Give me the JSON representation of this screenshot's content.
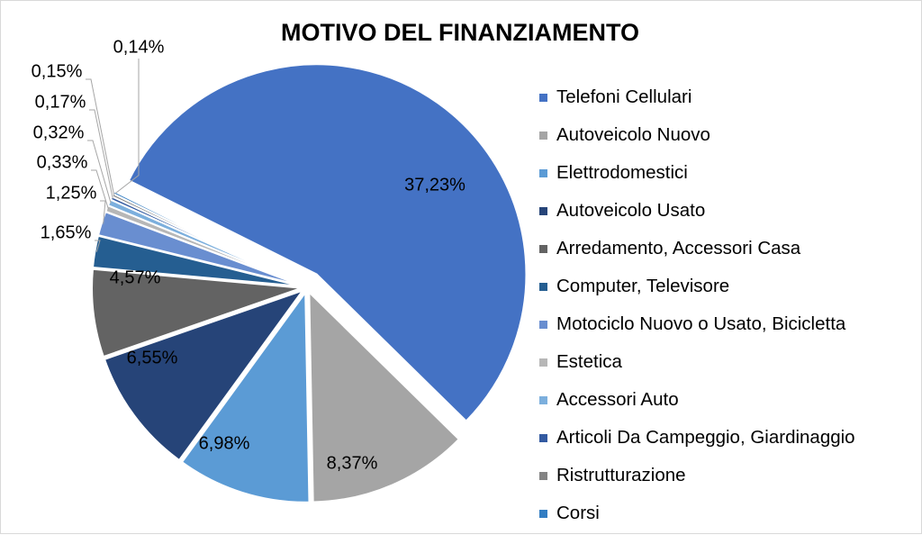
{
  "chart_data": {
    "type": "pie",
    "title": "MOTIVO DEL FINANZIAMENTO",
    "legend_position": "right",
    "slices": [
      {
        "label": "Telefoni Cellulari",
        "value": 37.23,
        "value_label": "37,23%",
        "color": "#4472c4"
      },
      {
        "label": "Autoveicolo Nuovo",
        "value": 8.37,
        "value_label": "8,37%",
        "color": "#a5a5a5"
      },
      {
        "label": "Elettrodomestici",
        "value": 6.98,
        "value_label": "6,98%",
        "color": "#5b9bd5"
      },
      {
        "label": "Autoveicolo Usato",
        "value": 6.55,
        "value_label": "6,55%",
        "color": "#264478"
      },
      {
        "label": "Arredamento, Accessori Casa",
        "value": 4.57,
        "value_label": "4,57%",
        "color": "#636363"
      },
      {
        "label": "Computer, Televisore",
        "value": 1.65,
        "value_label": "1,65%",
        "color": "#255e91"
      },
      {
        "label": "Motociclo Nuovo o Usato, Bicicletta",
        "value": 1.25,
        "value_label": "1,25%",
        "color": "#698ed0"
      },
      {
        "label": "Estetica",
        "value": 0.33,
        "value_label": "0,33%",
        "color": "#b7b7b7"
      },
      {
        "label": "Accessori Auto",
        "value": 0.32,
        "value_label": "0,32%",
        "color": "#7cafdd"
      },
      {
        "label": "Articoli Da Campeggio, Giardinaggio",
        "value": 0.17,
        "value_label": "0,17%",
        "color": "#335aa1"
      },
      {
        "label": "Ristrutturazione",
        "value": 0.15,
        "value_label": "0,15%",
        "color": "#848484"
      },
      {
        "label": "Corsi",
        "value": 0.14,
        "value_label": "0,14%",
        "color": "#327dc2"
      }
    ]
  }
}
